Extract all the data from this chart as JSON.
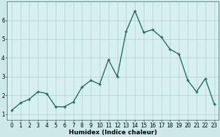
{
  "x": [
    0,
    1,
    2,
    3,
    4,
    5,
    6,
    7,
    8,
    9,
    10,
    11,
    12,
    13,
    14,
    15,
    16,
    17,
    18,
    19,
    20,
    21,
    22,
    23
  ],
  "y": [
    1.2,
    1.6,
    1.8,
    2.2,
    2.1,
    1.4,
    1.4,
    1.65,
    2.45,
    2.8,
    2.6,
    3.9,
    3.0,
    5.4,
    6.5,
    5.35,
    5.5,
    5.1,
    4.45,
    4.2,
    2.8,
    2.2,
    2.9,
    1.55
  ],
  "line_color": "#1a6b5a",
  "marker": "+",
  "marker_size": 3,
  "xlabel": "Humidex (Indice chaleur)",
  "xlim": [
    -0.5,
    23.5
  ],
  "ylim": [
    0.7,
    7.0
  ],
  "yticks": [
    1,
    2,
    3,
    4,
    5,
    6
  ],
  "xticks": [
    0,
    1,
    2,
    3,
    4,
    5,
    6,
    7,
    8,
    9,
    10,
    11,
    12,
    13,
    14,
    15,
    16,
    17,
    18,
    19,
    20,
    21,
    22,
    23
  ],
  "bg_color": "#cce8e8",
  "plot_bg": "#d6f0f0",
  "grid_color": "#b8cccc",
  "tick_fontsize": 5.5,
  "xlabel_fontsize": 6.5,
  "line_width": 1.0,
  "marker_color": "#1a6b5a"
}
